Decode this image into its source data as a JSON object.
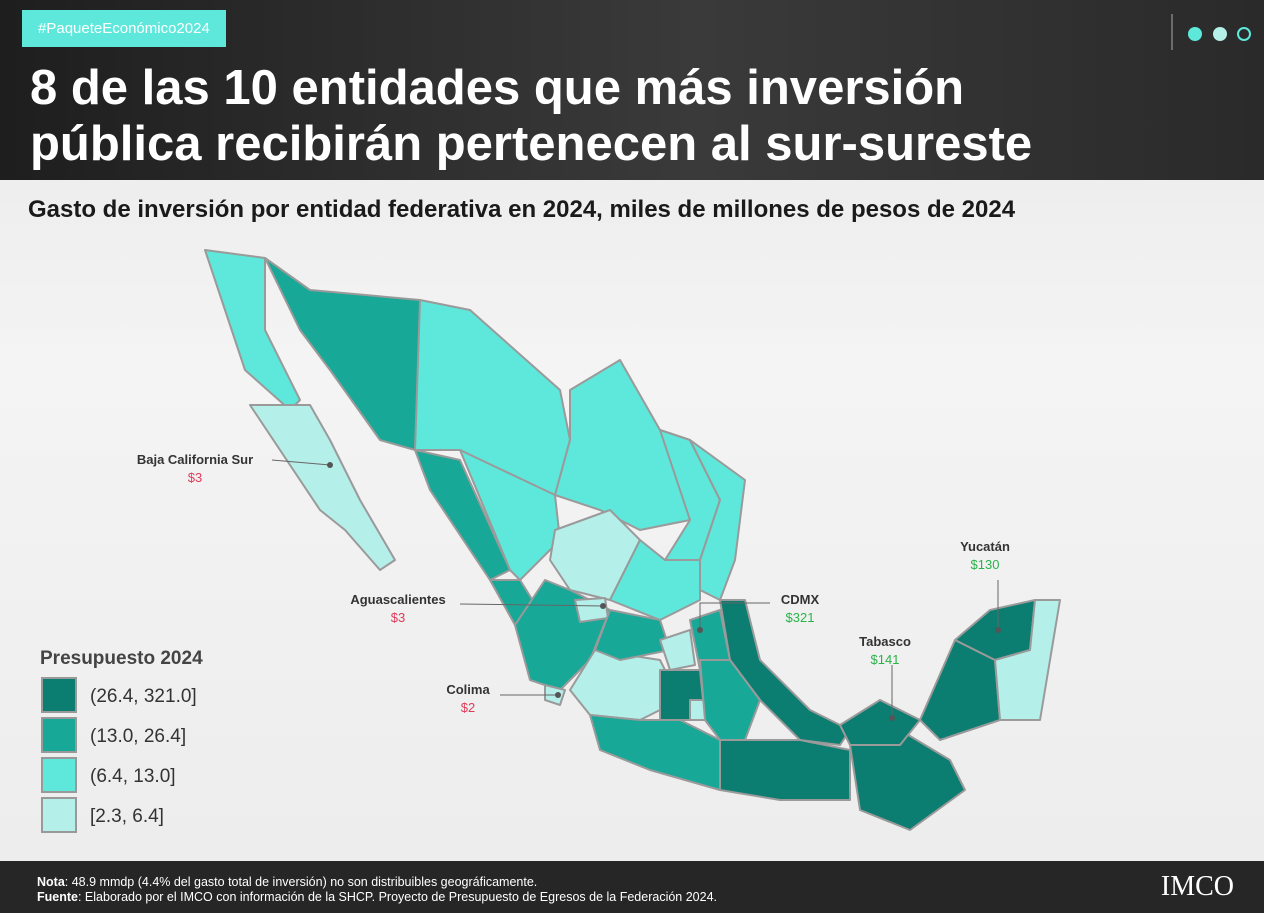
{
  "header": {
    "tag": "#PaqueteEconómico2024",
    "title_lines": [
      "8 de las 10 entidades que más inversión",
      "pública recibirán pertenecen al sur-sureste"
    ]
  },
  "subtitle": "Gasto de inversión por entidad federativa en 2024, miles de millones de pesos de 2024",
  "legend": {
    "title": "Presupuesto 2024",
    "items": [
      {
        "label": "(26.4, 321.0]",
        "color": "#0b7d71"
      },
      {
        "label": "(13.0, 26.4]",
        "color": "#17a898"
      },
      {
        "label": "(6.4, 13.0]",
        "color": "#5ee8db"
      },
      {
        "label": "[2.3, 6.4]",
        "color": "#b5efea"
      }
    ]
  },
  "annotations": [
    {
      "name": "Baja California Sur",
      "value": "$3"
    },
    {
      "name": "Aguascalientes",
      "value": "$3"
    },
    {
      "name": "Colima",
      "value": "$2"
    },
    {
      "name": "CDMX",
      "value": "$321"
    },
    {
      "name": "Tabasco",
      "value": "$141"
    },
    {
      "name": "Yucatán",
      "value": "$130"
    }
  ],
  "footer": {
    "note_label": "Nota",
    "note": ": 48.9 mmdp (4.4% del gasto total de inversión) no son distribuibles geográficamente.",
    "source_label": "Fuente",
    "source": ": Elaborado por el IMCO con información de la SHCP. Proyecto de Presupuesto de Egresos de la Federación 2024.",
    "logo": "IMCO"
  }
}
